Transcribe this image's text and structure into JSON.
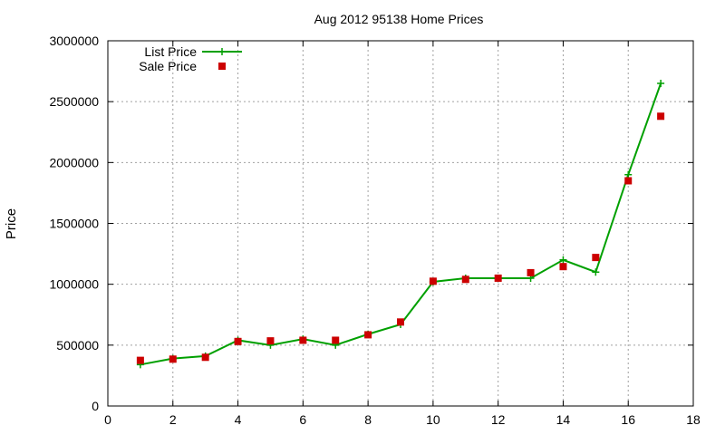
{
  "chart_data": {
    "type": "line",
    "title": "Aug 2012 95138 Home Prices",
    "xlabel": "",
    "ylabel": "Price",
    "xlim": [
      0,
      18
    ],
    "ylim": [
      0,
      3000000
    ],
    "xticks": [
      0,
      2,
      4,
      6,
      8,
      10,
      12,
      14,
      16,
      18
    ],
    "yticks": [
      0,
      500000,
      1000000,
      1500000,
      2000000,
      2500000,
      3000000
    ],
    "grid": true,
    "legend_position": "top-left",
    "series": [
      {
        "name": "List Price",
        "style": "line-plus",
        "color": "#00a000",
        "x": [
          1,
          2,
          3,
          4,
          5,
          6,
          7,
          8,
          9,
          10,
          11,
          12,
          13,
          14,
          15,
          16,
          17
        ],
        "y": [
          340000,
          390000,
          410000,
          540000,
          500000,
          550000,
          500000,
          590000,
          670000,
          1020000,
          1050000,
          1050000,
          1050000,
          1200000,
          1100000,
          1900000,
          2650000
        ]
      },
      {
        "name": "Sale Price",
        "style": "square-markers",
        "color": "#cc0000",
        "x": [
          1,
          2,
          3,
          4,
          5,
          6,
          7,
          8,
          9,
          10,
          11,
          12,
          13,
          14,
          15,
          16,
          17
        ],
        "y": [
          375000,
          385000,
          400000,
          530000,
          535000,
          540000,
          540000,
          585000,
          690000,
          1025000,
          1040000,
          1050000,
          1095000,
          1145000,
          1220000,
          1850000,
          2380000
        ]
      }
    ]
  }
}
